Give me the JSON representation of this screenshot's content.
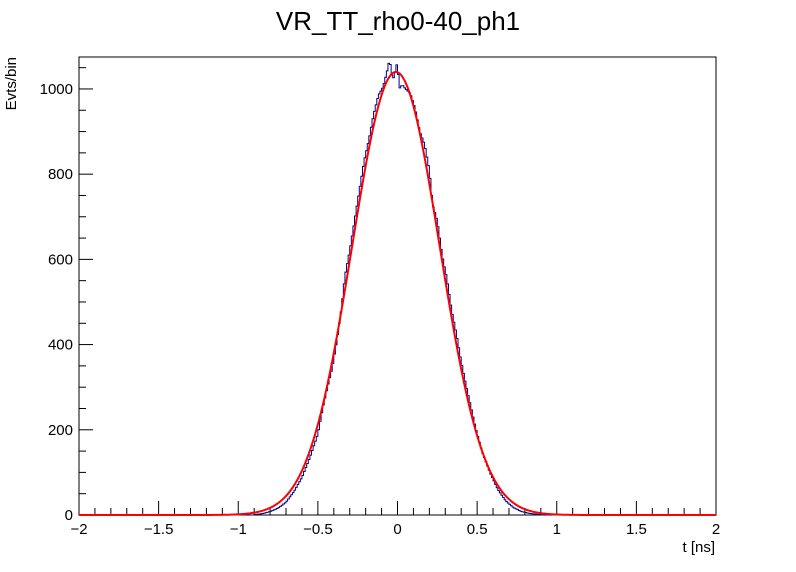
{
  "chart_data": {
    "type": "histogram",
    "title": "VR_TT_rho0-40_ph1",
    "xlabel": "t [ns]",
    "ylabel": "Evts/bin",
    "xlim": [
      -2,
      2
    ],
    "ylim": [
      0,
      1075
    ],
    "x_ticks": [
      -2,
      -1.5,
      -1,
      -0.5,
      0,
      0.5,
      1,
      1.5,
      2
    ],
    "x_tick_labels": [
      "−2",
      "−1.5",
      "−1",
      "−0.5",
      "0",
      "0.5",
      "1",
      "1.5",
      "2"
    ],
    "y_ticks": [
      0,
      200,
      400,
      600,
      800,
      1000
    ],
    "y_tick_labels": [
      "0",
      "200",
      "400",
      "600",
      "800",
      "1000"
    ],
    "grid": false,
    "legend": "none",
    "series": [
      {
        "kind": "histogram",
        "color": "#000080",
        "bin_width": 0.01,
        "bins": [
          {
            "x": -0.9,
            "y": 1
          },
          {
            "x": -0.85,
            "y": 3
          },
          {
            "x": -0.8,
            "y": 8
          },
          {
            "x": -0.75,
            "y": 16
          },
          {
            "x": -0.7,
            "y": 30
          },
          {
            "x": -0.65,
            "y": 55
          },
          {
            "x": -0.6,
            "y": 88
          },
          {
            "x": -0.55,
            "y": 135
          },
          {
            "x": -0.5,
            "y": 190
          },
          {
            "x": -0.47,
            "y": 250
          },
          {
            "x": -0.44,
            "y": 300
          },
          {
            "x": -0.41,
            "y": 345
          },
          {
            "x": -0.38,
            "y": 410
          },
          {
            "x": -0.35,
            "y": 490
          },
          {
            "x": -0.33,
            "y": 560
          },
          {
            "x": -0.3,
            "y": 620
          },
          {
            "x": -0.27,
            "y": 690
          },
          {
            "x": -0.24,
            "y": 760
          },
          {
            "x": -0.21,
            "y": 830
          },
          {
            "x": -0.18,
            "y": 880
          },
          {
            "x": -0.15,
            "y": 940
          },
          {
            "x": -0.12,
            "y": 985
          },
          {
            "x": -0.09,
            "y": 1005
          },
          {
            "x": -0.06,
            "y": 1050
          },
          {
            "x": -0.05,
            "y": 1070
          },
          {
            "x": -0.03,
            "y": 1020
          },
          {
            "x": -0.01,
            "y": 1045
          },
          {
            "x": 0.0,
            "y": 1068
          },
          {
            "x": 0.01,
            "y": 1000
          },
          {
            "x": 0.03,
            "y": 1010
          },
          {
            "x": 0.05,
            "y": 1000
          },
          {
            "x": 0.08,
            "y": 990
          },
          {
            "x": 0.11,
            "y": 955
          },
          {
            "x": 0.14,
            "y": 900
          },
          {
            "x": 0.17,
            "y": 870
          },
          {
            "x": 0.2,
            "y": 810
          },
          {
            "x": 0.22,
            "y": 730
          },
          {
            "x": 0.25,
            "y": 690
          },
          {
            "x": 0.28,
            "y": 610
          },
          {
            "x": 0.31,
            "y": 555
          },
          {
            "x": 0.34,
            "y": 480
          },
          {
            "x": 0.37,
            "y": 425
          },
          {
            "x": 0.4,
            "y": 360
          },
          {
            "x": 0.43,
            "y": 305
          },
          {
            "x": 0.46,
            "y": 255
          },
          {
            "x": 0.49,
            "y": 205
          },
          {
            "x": 0.53,
            "y": 150
          },
          {
            "x": 0.58,
            "y": 100
          },
          {
            "x": 0.63,
            "y": 60
          },
          {
            "x": 0.68,
            "y": 33
          },
          {
            "x": 0.73,
            "y": 17
          },
          {
            "x": 0.78,
            "y": 8
          },
          {
            "x": 0.84,
            "y": 3
          },
          {
            "x": 0.9,
            "y": 1
          }
        ]
      },
      {
        "kind": "fit",
        "color": "#ff0000",
        "function": "gaussian",
        "amplitude": 1040,
        "mean": -0.01,
        "sigma": 0.275
      }
    ]
  }
}
